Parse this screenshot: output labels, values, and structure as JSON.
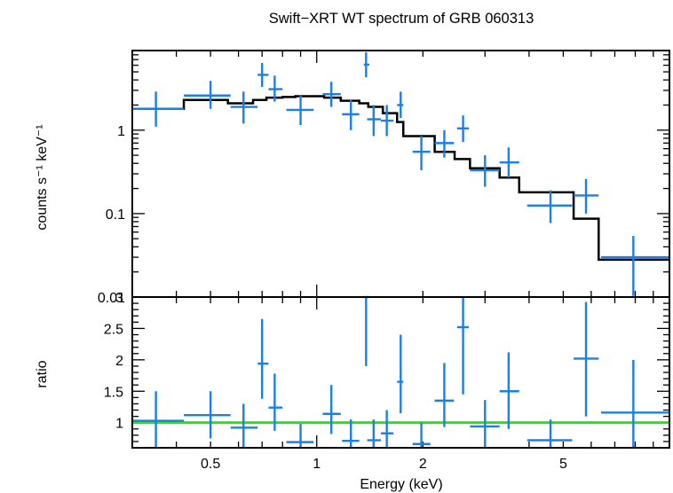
{
  "chart_data": [
    {
      "type": "scatter",
      "title": "Swift−XRT WT spectrum of GRB 060313",
      "xlabel": "Energy (keV)",
      "ylabel": "counts s⁻¹ keV⁻¹",
      "x_scale": "log",
      "y_scale": "log",
      "xlim": [
        0.3,
        10
      ],
      "ylim": [
        0.01,
        9
      ],
      "x_ticks": [
        0.5,
        1,
        2,
        5
      ],
      "x_tick_labels": [
        "0.5",
        "1",
        "2",
        "5"
      ],
      "y_ticks": [
        0.01,
        0.1,
        1
      ],
      "y_tick_labels": [
        "0.01",
        "0.1",
        "1"
      ],
      "series": [
        {
          "type": "errorbar",
          "color": "#1a7fe8",
          "points": [
            {
              "x": 0.35,
              "xlo": 0.3,
              "xhi": 0.42,
              "y": 1.8,
              "ylo": 1.1,
              "yhi": 2.9
            },
            {
              "x": 0.5,
              "xlo": 0.42,
              "xhi": 0.57,
              "y": 2.6,
              "ylo": 1.8,
              "yhi": 3.9
            },
            {
              "x": 0.62,
              "xlo": 0.57,
              "xhi": 0.68,
              "y": 1.9,
              "ylo": 1.2,
              "yhi": 2.9
            },
            {
              "x": 0.7,
              "xlo": 0.68,
              "xhi": 0.73,
              "y": 4.6,
              "ylo": 3.3,
              "yhi": 6.4
            },
            {
              "x": 0.76,
              "xlo": 0.73,
              "xhi": 0.8,
              "y": 3.1,
              "ylo": 2.2,
              "yhi": 4.5
            },
            {
              "x": 0.9,
              "xlo": 0.82,
              "xhi": 0.98,
              "y": 1.75,
              "ylo": 1.15,
              "yhi": 2.6
            },
            {
              "x": 1.1,
              "xlo": 1.04,
              "xhi": 1.17,
              "y": 2.7,
              "ylo": 1.9,
              "yhi": 3.8
            },
            {
              "x": 1.25,
              "xlo": 1.18,
              "xhi": 1.32,
              "y": 1.55,
              "ylo": 1.0,
              "yhi": 2.3
            },
            {
              "x": 1.38,
              "xlo": 1.36,
              "xhi": 1.41,
              "y": 6.1,
              "ylo": 4.3,
              "yhi": 8.6
            },
            {
              "x": 1.45,
              "xlo": 1.39,
              "xhi": 1.52,
              "y": 1.35,
              "ylo": 0.85,
              "yhi": 2.0
            },
            {
              "x": 1.58,
              "xlo": 1.52,
              "xhi": 1.65,
              "y": 1.3,
              "ylo": 0.85,
              "yhi": 2.0
            },
            {
              "x": 1.73,
              "xlo": 1.69,
              "xhi": 1.76,
              "y": 2.0,
              "ylo": 1.4,
              "yhi": 2.9
            },
            {
              "x": 1.98,
              "xlo": 1.87,
              "xhi": 2.1,
              "y": 0.55,
              "ylo": 0.33,
              "yhi": 0.85
            },
            {
              "x": 2.3,
              "xlo": 2.16,
              "xhi": 2.45,
              "y": 0.7,
              "ylo": 0.47,
              "yhi": 1.0
            },
            {
              "x": 2.6,
              "xlo": 2.5,
              "xhi": 2.7,
              "y": 1.05,
              "ylo": 0.72,
              "yhi": 1.5
            },
            {
              "x": 3.0,
              "xlo": 2.72,
              "xhi": 3.3,
              "y": 0.33,
              "ylo": 0.21,
              "yhi": 0.5
            },
            {
              "x": 3.5,
              "xlo": 3.3,
              "xhi": 3.75,
              "y": 0.41,
              "ylo": 0.27,
              "yhi": 0.62
            },
            {
              "x": 4.6,
              "xlo": 3.95,
              "xhi": 5.3,
              "y": 0.125,
              "ylo": 0.077,
              "yhi": 0.19
            },
            {
              "x": 5.8,
              "xlo": 5.35,
              "xhi": 6.3,
              "y": 0.165,
              "ylo": 0.1,
              "yhi": 0.26
            },
            {
              "x": 7.9,
              "xlo": 6.4,
              "xhi": 10,
              "y": 0.03,
              "ylo": 0.0103,
              "yhi": 0.054
            }
          ]
        },
        {
          "type": "step",
          "color": "#000000",
          "bins": [
            {
              "xlo": 0.3,
              "xhi": 0.42,
              "y": 1.8
            },
            {
              "xlo": 0.42,
              "xhi": 0.56,
              "y": 2.3
            },
            {
              "xlo": 0.56,
              "xhi": 0.66,
              "y": 2.1
            },
            {
              "xlo": 0.66,
              "xhi": 0.72,
              "y": 2.3
            },
            {
              "xlo": 0.72,
              "xhi": 0.8,
              "y": 2.45
            },
            {
              "xlo": 0.8,
              "xhi": 0.87,
              "y": 2.5
            },
            {
              "xlo": 0.87,
              "xhi": 1.05,
              "y": 2.55
            },
            {
              "xlo": 1.05,
              "xhi": 1.17,
              "y": 2.45
            },
            {
              "xlo": 1.17,
              "xhi": 1.32,
              "y": 2.25
            },
            {
              "xlo": 1.32,
              "xhi": 1.4,
              "y": 2.1
            },
            {
              "xlo": 1.4,
              "xhi": 1.54,
              "y": 1.9
            },
            {
              "xlo": 1.54,
              "xhi": 1.69,
              "y": 1.6
            },
            {
              "xlo": 1.69,
              "xhi": 1.76,
              "y": 1.25
            },
            {
              "xlo": 1.76,
              "xhi": 2.16,
              "y": 0.85
            },
            {
              "xlo": 2.16,
              "xhi": 2.46,
              "y": 0.55
            },
            {
              "xlo": 2.46,
              "xhi": 2.72,
              "y": 0.45
            },
            {
              "xlo": 2.72,
              "xhi": 3.3,
              "y": 0.35
            },
            {
              "xlo": 3.3,
              "xhi": 3.75,
              "y": 0.27
            },
            {
              "xlo": 3.75,
              "xhi": 5.35,
              "y": 0.18
            },
            {
              "xlo": 5.35,
              "xhi": 6.3,
              "y": 0.087
            },
            {
              "xlo": 6.3,
              "xhi": 10,
              "y": 0.028
            }
          ]
        }
      ]
    },
    {
      "type": "scatter",
      "xlabel": "Energy (keV)",
      "ylabel": "ratio",
      "x_scale": "log",
      "y_scale": "linear",
      "xlim": [
        0.3,
        10
      ],
      "ylim": [
        0.6,
        3
      ],
      "x_ticks": [
        0.5,
        1,
        2,
        5
      ],
      "x_tick_labels": [
        "0.5",
        "1",
        "2",
        "5"
      ],
      "y_ticks": [
        1,
        1.5,
        2,
        2.5,
        3
      ],
      "y_tick_labels": [
        "1",
        "1.5",
        "2",
        "2.5",
        "3"
      ],
      "reference_line": {
        "y": 1,
        "color": "#33dd22"
      },
      "series": [
        {
          "type": "errorbar",
          "color": "#1a7fe8",
          "points": [
            {
              "x": 0.35,
              "xlo": 0.3,
              "xhi": 0.42,
              "y": 1.03,
              "ylo": 0.6,
              "yhi": 1.5
            },
            {
              "x": 0.5,
              "xlo": 0.42,
              "xhi": 0.57,
              "y": 1.12,
              "ylo": 0.75,
              "yhi": 1.5
            },
            {
              "x": 0.62,
              "xlo": 0.57,
              "xhi": 0.68,
              "y": 0.92,
              "ylo": 0.6,
              "yhi": 1.3
            },
            {
              "x": 0.7,
              "xlo": 0.68,
              "xhi": 0.73,
              "y": 1.94,
              "ylo": 1.38,
              "yhi": 2.65
            },
            {
              "x": 0.76,
              "xlo": 0.73,
              "xhi": 0.8,
              "y": 1.24,
              "ylo": 0.87,
              "yhi": 1.78
            },
            {
              "x": 0.9,
              "xlo": 0.82,
              "xhi": 0.98,
              "y": 0.69,
              "ylo": 0.6,
              "yhi": 0.98
            },
            {
              "x": 1.1,
              "xlo": 1.04,
              "xhi": 1.17,
              "y": 1.14,
              "ylo": 0.82,
              "yhi": 1.6
            },
            {
              "x": 1.25,
              "xlo": 1.18,
              "xhi": 1.32,
              "y": 0.71,
              "ylo": 0.6,
              "yhi": 1.05
            },
            {
              "x": 1.38,
              "xlo": 1.36,
              "xhi": 1.41,
              "y": 3.0,
              "ylo": 1.9,
              "yhi": 3.0
            },
            {
              "x": 1.45,
              "xlo": 1.39,
              "xhi": 1.52,
              "y": 0.72,
              "ylo": 0.6,
              "yhi": 1.05
            },
            {
              "x": 1.58,
              "xlo": 1.52,
              "xhi": 1.65,
              "y": 0.83,
              "ylo": 0.6,
              "yhi": 1.2
            },
            {
              "x": 1.73,
              "xlo": 1.69,
              "xhi": 1.76,
              "y": 1.65,
              "ylo": 1.15,
              "yhi": 2.4
            },
            {
              "x": 1.98,
              "xlo": 1.87,
              "xhi": 2.1,
              "y": 0.66,
              "ylo": 0.6,
              "yhi": 1.0
            },
            {
              "x": 2.3,
              "xlo": 2.16,
              "xhi": 2.45,
              "y": 1.35,
              "ylo": 0.93,
              "yhi": 1.95
            },
            {
              "x": 2.6,
              "xlo": 2.5,
              "xhi": 2.7,
              "y": 2.52,
              "ylo": 1.45,
              "yhi": 3.0
            },
            {
              "x": 3.0,
              "xlo": 2.72,
              "xhi": 3.3,
              "y": 0.94,
              "ylo": 0.6,
              "yhi": 1.36
            },
            {
              "x": 3.5,
              "xlo": 3.3,
              "xhi": 3.75,
              "y": 1.5,
              "ylo": 0.9,
              "yhi": 2.12
            },
            {
              "x": 4.6,
              "xlo": 3.95,
              "xhi": 5.3,
              "y": 0.72,
              "ylo": 0.6,
              "yhi": 1.05
            },
            {
              "x": 5.8,
              "xlo": 5.35,
              "xhi": 6.3,
              "y": 2.02,
              "ylo": 1.1,
              "yhi": 2.92
            },
            {
              "x": 7.9,
              "xlo": 6.4,
              "xhi": 10,
              "y": 1.16,
              "ylo": 0.6,
              "yhi": 2.0
            }
          ]
        }
      ]
    }
  ]
}
